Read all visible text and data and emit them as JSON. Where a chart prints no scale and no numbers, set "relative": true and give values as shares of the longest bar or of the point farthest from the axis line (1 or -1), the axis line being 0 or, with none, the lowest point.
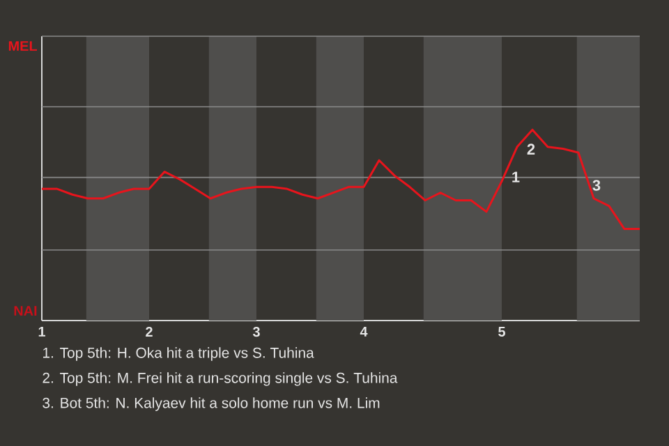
{
  "chart_data": {
    "type": "line",
    "relative": true,
    "categories": [
      "1",
      null,
      null,
      null,
      null,
      null,
      null,
      "2",
      null,
      null,
      null,
      null,
      null,
      null,
      "3",
      null,
      null,
      null,
      null,
      null,
      null,
      "4",
      null,
      null,
      null,
      null,
      null,
      null,
      null,
      null,
      "5",
      null,
      null,
      null,
      null,
      null,
      null,
      null,
      null,
      null
    ],
    "series": [
      {
        "color": "#e8141c",
        "values": [
          0.69,
          0.69,
          0.66,
          0.64,
          0.64,
          0.67,
          0.69,
          0.69,
          0.78,
          0.74,
          0.69,
          0.64,
          0.67,
          0.69,
          0.7,
          0.7,
          0.69,
          0.66,
          0.64,
          0.67,
          0.7,
          0.7,
          0.84,
          0.76,
          0.7,
          0.63,
          0.67,
          0.63,
          0.63,
          0.57,
          0.73,
          0.91,
          1,
          0.91,
          0.9,
          0.88,
          0.64,
          0.6,
          0.48,
          0.48
        ]
      }
    ],
    "ref_lines": [
      {
        "axis": "y",
        "value": 0.37,
        "color": "#8a8a8a"
      },
      {
        "axis": "y",
        "value": 0.75,
        "color": "#8a8a8a"
      },
      {
        "axis": "y",
        "value": 1.12,
        "color": "#8a8a8a"
      },
      {
        "axis": "y",
        "value": 1.49,
        "color": "#8a8a8a"
      }
    ],
    "marker": "none",
    "line_style": "solid",
    "annotations": [
      "MEL",
      "NAI",
      "1",
      "2",
      "3",
      "1. Top 5th: H. Oka hit a triple vs S. Tuhina",
      "2. Top 5th: M. Frei hit a run-scoring single vs S. Tuhina",
      "3. Bot 5th: N. Kalyaev hit a solo home run vs M. Lim"
    ]
  }
}
